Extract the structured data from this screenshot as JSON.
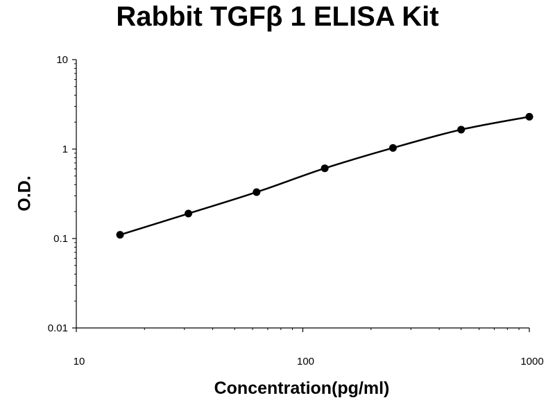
{
  "chart_data": {
    "type": "line",
    "title": "Rabbit TGFβ 1 ELISA Kit",
    "xlabel": "Concentration(pg/ml)",
    "ylabel": "O.D.",
    "x_scale": "log",
    "y_scale": "log",
    "xlim": [
      10,
      1000
    ],
    "ylim": [
      0.01,
      10
    ],
    "x_ticks": [
      10,
      100,
      1000
    ],
    "x_tick_labels": [
      "10",
      "100",
      "1000"
    ],
    "y_ticks": [
      0.01,
      0.1,
      1,
      10
    ],
    "y_tick_labels": [
      "0.01",
      "0.1",
      "1",
      "10"
    ],
    "grid": false,
    "legend": "none",
    "series": [
      {
        "x": [
          15.6,
          31.25,
          62.5,
          125,
          250,
          500,
          1000
        ],
        "y": [
          0.11,
          0.19,
          0.33,
          0.61,
          1.03,
          1.65,
          2.3
        ],
        "marker": "circle",
        "color": "#000000"
      }
    ]
  }
}
